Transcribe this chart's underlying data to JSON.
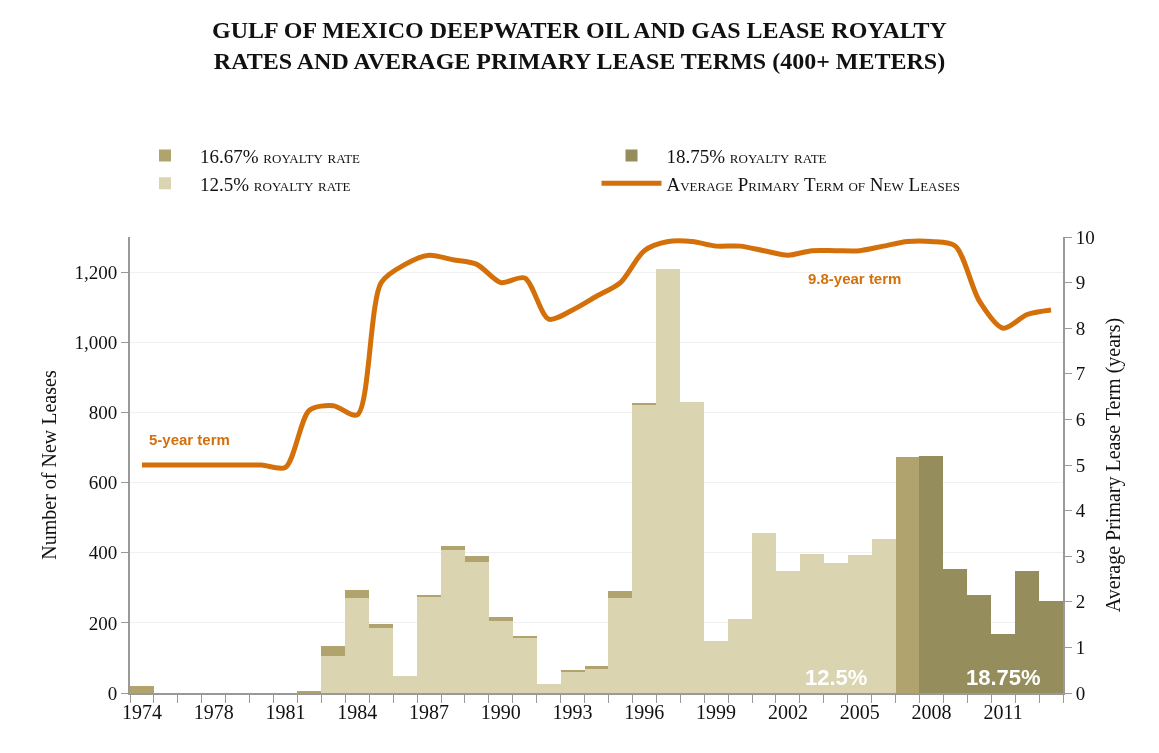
{
  "chart_data": {
    "type": "bar",
    "title": "GULF OF MEXICO DEEPWATER OIL AND GAS LEASE ROYALTY RATES AND AVERAGE PRIMARY LEASE TERMS (400+ METERS)",
    "ylabel": "Number of New Leases",
    "y2label": "Average Primary Lease Term (years)",
    "categories": [
      "1974",
      null,
      null,
      "1978",
      null,
      null,
      "1981",
      null,
      null,
      "1984",
      null,
      null,
      "1987",
      null,
      null,
      "1990",
      null,
      null,
      "1993",
      null,
      null,
      "1996",
      null,
      null,
      "1999",
      null,
      null,
      "2002",
      null,
      null,
      "2005",
      null,
      null,
      "2008",
      null,
      null,
      "2011",
      null,
      null
    ],
    "stacked": true,
    "series": [
      {
        "name": "12.5% royalty rate",
        "color": "#dad4b1",
        "values": [
          0,
          0,
          0,
          0,
          0,
          0,
          0,
          0,
          105,
          270,
          185,
          48,
          274,
          408,
          373,
          205,
          157,
          26,
          60,
          69,
          272,
          822,
          1210,
          831,
          148,
          211,
          455,
          348,
          397,
          371,
          393,
          440,
          0,
          0,
          0,
          0,
          0,
          0,
          0
        ]
      },
      {
        "name": "16.67% royalty rate",
        "color": "#b0a36d",
        "values": [
          20,
          0,
          0,
          0,
          0,
          0,
          0,
          6,
          28,
          25,
          12,
          0,
          3,
          12,
          19,
          11,
          4,
          0,
          7,
          8,
          18,
          3,
          0,
          0,
          0,
          0,
          0,
          0,
          0,
          0,
          0,
          0,
          672,
          0,
          0,
          0,
          0,
          0,
          0
        ]
      },
      {
        "name": "18.75% royalty rate",
        "color": "#958e5c",
        "values": [
          0,
          0,
          0,
          0,
          0,
          0,
          0,
          0,
          0,
          0,
          0,
          0,
          0,
          0,
          0,
          0,
          0,
          0,
          0,
          0,
          0,
          0,
          0,
          0,
          0,
          0,
          0,
          0,
          0,
          0,
          0,
          0,
          0,
          677,
          354,
          279,
          167,
          348,
          263
        ]
      },
      {
        "name": "Average Primary Term of New Leases",
        "type": "line",
        "axis": "y2",
        "color": "#d4700a",
        "values": [
          5.0,
          5.0,
          5.0,
          5.0,
          5.0,
          5.0,
          4.95,
          6.2,
          6.3,
          6.1,
          9.0,
          9.4,
          9.6,
          9.5,
          9.4,
          9.0,
          9.1,
          8.2,
          8.4,
          8.7,
          9.0,
          9.7,
          9.9,
          9.9,
          9.8,
          9.8,
          9.7,
          9.6,
          9.7,
          9.7,
          9.7,
          9.8,
          9.9,
          9.9,
          9.8,
          8.6,
          8.0,
          8.3,
          8.4
        ]
      }
    ],
    "ylim": [
      0,
      1300
    ],
    "yticks": [
      0,
      200,
      400,
      600,
      800,
      {
        "value": 1000,
        "label": "1,000"
      },
      {
        "value": 1200,
        "label": "1,200"
      }
    ],
    "y2lim": [
      0,
      10
    ],
    "y2ticks": [
      0,
      1,
      2,
      3,
      4,
      5,
      6,
      7,
      8,
      9,
      10
    ],
    "grid": "y",
    "legend": "top",
    "marker": "none",
    "annotations": [
      "5-year term",
      "9.8-year term",
      "12.5%",
      "18.75%"
    ]
  }
}
